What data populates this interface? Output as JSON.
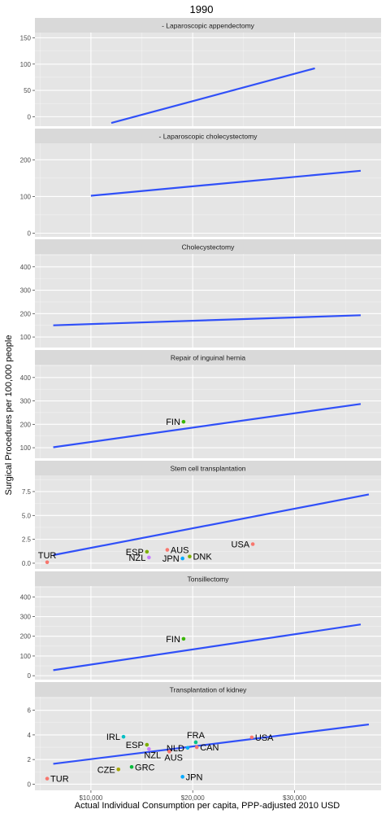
{
  "chart_data": {
    "type": "scatter",
    "title": "1990",
    "xlabel": "Actual Individual Consumption per capita, PPP-adjusted 2010 USD",
    "ylabel": "Surgical Procedures per 100,000 people",
    "xlim": [
      4500,
      38500
    ],
    "x_ticks": [
      10000,
      20000,
      30000
    ],
    "x_tick_labels": [
      "$10,000",
      "$20,000",
      "$30,000"
    ],
    "grid": true,
    "colors": {
      "panel_bg": "#e5e5e5",
      "strip_bg": "#d9d9d9",
      "grid": "#ffffff",
      "trend": "#3050f8",
      "text": "#4d4d4d"
    },
    "panels": [
      {
        "strip": "- Laparoscopic appendectomy",
        "ylim": [
          -18,
          160
        ],
        "y_ticks": [
          0,
          50,
          100,
          150
        ],
        "y_tick_labels": [
          "0",
          "50",
          "100",
          "150"
        ],
        "trend": {
          "x": [
            12000,
            32000
          ],
          "y": [
            -12,
            92
          ]
        },
        "points": []
      },
      {
        "strip": "- Laparoscopic cholecystectomy",
        "ylim": [
          -10,
          245
        ],
        "y_ticks": [
          0,
          100,
          200
        ],
        "y_tick_labels": [
          "0",
          "100",
          "200"
        ],
        "trend": {
          "x": [
            10000,
            36500
          ],
          "y": [
            102,
            170
          ]
        },
        "points": []
      },
      {
        "strip": "Cholecystectomy",
        "ylim": [
          55,
          455
        ],
        "y_ticks": [
          100,
          200,
          300,
          400
        ],
        "y_tick_labels": [
          "100",
          "200",
          "300",
          "400"
        ],
        "trend": {
          "x": [
            6300,
            36500
          ],
          "y": [
            150,
            193
          ]
        },
        "points": []
      },
      {
        "strip": "Repair of inguinal hernia",
        "ylim": [
          55,
          455
        ],
        "y_ticks": [
          100,
          200,
          300,
          400
        ],
        "y_tick_labels": [
          "100",
          "200",
          "300",
          "400"
        ],
        "trend": {
          "x": [
            6300,
            36500
          ],
          "y": [
            102,
            287
          ]
        },
        "points": [
          {
            "label": "FIN",
            "x": 19100,
            "y": 211,
            "color": "#39b600",
            "label_side": "left"
          }
        ]
      },
      {
        "strip": "Stem cell transplantation",
        "ylim": [
          -0.6,
          9.2
        ],
        "y_ticks": [
          0,
          2.5,
          5,
          7.5
        ],
        "y_tick_labels": [
          "0.0",
          "2.5",
          "5.0",
          "7.5"
        ],
        "trend": {
          "x": [
            6300,
            37300
          ],
          "y": [
            0.85,
            7.2
          ]
        },
        "points": [
          {
            "label": "TUR",
            "x": 5700,
            "y": 0.1,
            "color": "#f8766d",
            "label_side": "above"
          },
          {
            "label": "ESP",
            "x": 15500,
            "y": 1.2,
            "color": "#7cae00",
            "label_side": "left"
          },
          {
            "label": "AUS",
            "x": 17500,
            "y": 1.4,
            "color": "#f8766d",
            "label_side": "right"
          },
          {
            "label": "NZL",
            "x": 15700,
            "y": 0.6,
            "color": "#c77cff",
            "label_side": "left"
          },
          {
            "label": "JPN",
            "x": 19000,
            "y": 0.5,
            "color": "#00a9ff",
            "label_side": "left"
          },
          {
            "label": "DNK",
            "x": 19700,
            "y": 0.7,
            "color": "#7cae00",
            "label_side": "right"
          },
          {
            "label": "USA",
            "x": 25900,
            "y": 2.0,
            "color": "#f8766d",
            "label_side": "left"
          }
        ]
      },
      {
        "strip": "Tonsillectomy",
        "ylim": [
          -20,
          455
        ],
        "y_ticks": [
          0,
          100,
          200,
          300,
          400
        ],
        "y_tick_labels": [
          "0",
          "100",
          "200",
          "300",
          "400"
        ],
        "trend": {
          "x": [
            6300,
            36500
          ],
          "y": [
            28,
            260
          ]
        },
        "points": [
          {
            "label": "FIN",
            "x": 19100,
            "y": 187,
            "color": "#39b600",
            "label_side": "left"
          }
        ]
      },
      {
        "strip": "Transplantation of kidney",
        "ylim": [
          -0.5,
          7.1
        ],
        "y_ticks": [
          0,
          2,
          4,
          6
        ],
        "y_tick_labels": [
          "0",
          "2",
          "4",
          "6"
        ],
        "trend": {
          "x": [
            6300,
            37300
          ],
          "y": [
            1.65,
            4.85
          ]
        },
        "points": [
          {
            "label": "TUR",
            "x": 5700,
            "y": 0.45,
            "color": "#f8766d",
            "label_side": "right"
          },
          {
            "label": "IRL",
            "x": 13200,
            "y": 3.85,
            "color": "#00bfc4",
            "label_side": "left"
          },
          {
            "label": "ESP",
            "x": 15500,
            "y": 3.2,
            "color": "#7cae00",
            "label_side": "left"
          },
          {
            "label": "NZL",
            "x": 15700,
            "y": 2.85,
            "color": "#c77cff",
            "label_side": "right-below"
          },
          {
            "label": "CZE",
            "x": 12700,
            "y": 1.2,
            "color": "#a3a500",
            "label_side": "left"
          },
          {
            "label": "GRC",
            "x": 14000,
            "y": 1.4,
            "color": "#00ba38",
            "label_side": "right"
          },
          {
            "label": "FRA",
            "x": 20300,
            "y": 3.4,
            "color": "#00c08b",
            "label_side": "above"
          },
          {
            "label": "NLD",
            "x": 19500,
            "y": 2.95,
            "color": "#00b0f6",
            "label_side": "left"
          },
          {
            "label": "CAN",
            "x": 20400,
            "y": 3.0,
            "color": "#f8766d",
            "label_side": "right"
          },
          {
            "label": "AUS",
            "x": 17700,
            "y": 2.65,
            "color": "#f8766d",
            "label_side": "right-below"
          },
          {
            "label": "USA",
            "x": 25800,
            "y": 3.8,
            "color": "#f8766d",
            "label_side": "right"
          },
          {
            "label": "JPN",
            "x": 19000,
            "y": 0.6,
            "color": "#00a9ff",
            "label_side": "right"
          }
        ]
      }
    ]
  }
}
